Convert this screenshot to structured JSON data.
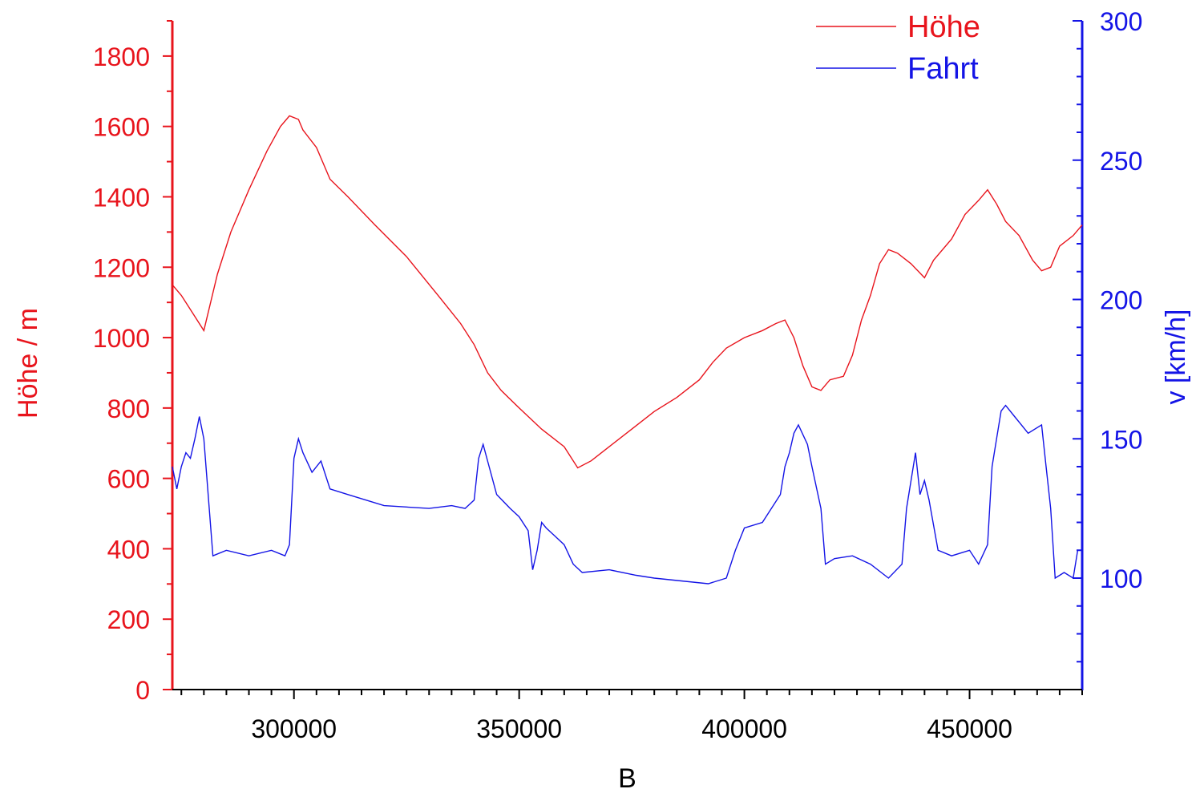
{
  "chart_data": {
    "type": "line",
    "xlabel": "B",
    "xlim": [
      273000,
      475000
    ],
    "x_ticks_major": [
      300000,
      350000,
      400000,
      450000
    ],
    "x_minor_step": 5000,
    "legend_placement": "top-right",
    "y_left": {
      "label": "Höhe / m",
      "lim": [
        0,
        1900
      ],
      "ticks": [
        0,
        200,
        400,
        600,
        800,
        1000,
        1200,
        1400,
        1600,
        1800
      ],
      "minor_step": 100,
      "color": "#e8141c"
    },
    "y_right": {
      "label": "v [km/h]",
      "lim": [
        60,
        300
      ],
      "ticks": [
        100,
        150,
        200,
        250,
        300
      ],
      "minor_step": 10,
      "color": "#1414e6"
    },
    "series": [
      {
        "name": "Höhe",
        "axis": "left",
        "color": "#e8141c",
        "x": [
          273000,
          275000,
          278000,
          280000,
          283000,
          286000,
          290000,
          294000,
          297000,
          299000,
          301000,
          302000,
          305000,
          308000,
          312000,
          318000,
          325000,
          332000,
          337000,
          340000,
          343000,
          346000,
          350000,
          355000,
          360000,
          363000,
          366000,
          370000,
          375000,
          380000,
          385000,
          390000,
          393000,
          396000,
          400000,
          404000,
          407000,
          409000,
          411000,
          413000,
          415000,
          417000,
          419000,
          422000,
          424000,
          426000,
          428000,
          430000,
          432000,
          434000,
          437000,
          440000,
          442000,
          446000,
          449000,
          452000,
          454000,
          456000,
          458000,
          461000,
          464000,
          466000,
          468000,
          470000,
          473000,
          475000
        ],
        "y": [
          1150,
          1120,
          1060,
          1020,
          1180,
          1300,
          1420,
          1530,
          1600,
          1630,
          1620,
          1590,
          1540,
          1450,
          1400,
          1320,
          1230,
          1120,
          1040,
          980,
          900,
          850,
          800,
          740,
          690,
          630,
          650,
          690,
          740,
          790,
          830,
          880,
          930,
          970,
          1000,
          1020,
          1040,
          1050,
          1000,
          920,
          860,
          850,
          880,
          890,
          950,
          1050,
          1120,
          1210,
          1250,
          1240,
          1210,
          1170,
          1220,
          1280,
          1350,
          1390,
          1420,
          1380,
          1330,
          1290,
          1220,
          1190,
          1200,
          1260,
          1290,
          1320
        ]
      },
      {
        "name": "Fahrt",
        "axis": "right",
        "color": "#1414e6",
        "x": [
          273000,
          274000,
          275000,
          276000,
          277000,
          278000,
          279000,
          280000,
          282000,
          285000,
          290000,
          295000,
          298000,
          299000,
          300000,
          301000,
          302000,
          304000,
          306000,
          308000,
          312000,
          320000,
          330000,
          335000,
          338000,
          340000,
          341000,
          342000,
          343000,
          345000,
          348000,
          350000,
          352000,
          353000,
          354000,
          355000,
          356000,
          358000,
          360000,
          362000,
          364000,
          370000,
          376000,
          380000,
          386000,
          392000,
          396000,
          398000,
          400000,
          404000,
          406000,
          408000,
          409000,
          410000,
          411000,
          412000,
          414000,
          415000,
          417000,
          418000,
          420000,
          424000,
          428000,
          432000,
          435000,
          436000,
          437000,
          438000,
          439000,
          440000,
          441000,
          443000,
          446000,
          450000,
          452000,
          454000,
          455000,
          456000,
          457000,
          458000,
          460000,
          463000,
          466000,
          467000,
          468000,
          469000,
          471000,
          473000,
          474000,
          475000
        ],
        "y": [
          140,
          132,
          140,
          145,
          143,
          150,
          158,
          150,
          108,
          110,
          108,
          110,
          108,
          112,
          143,
          150,
          145,
          138,
          142,
          132,
          130,
          126,
          125,
          126,
          125,
          128,
          143,
          148,
          142,
          130,
          125,
          122,
          117,
          103,
          110,
          120,
          118,
          115,
          112,
          105,
          102,
          103,
          101,
          100,
          99,
          98,
          100,
          110,
          118,
          120,
          125,
          130,
          140,
          145,
          152,
          155,
          148,
          140,
          125,
          105,
          107,
          108,
          105,
          100,
          105,
          125,
          135,
          145,
          130,
          135,
          128,
          110,
          108,
          110,
          105,
          112,
          140,
          150,
          160,
          162,
          158,
          152,
          155,
          140,
          125,
          100,
          102,
          100,
          110,
          110
        ]
      }
    ]
  }
}
